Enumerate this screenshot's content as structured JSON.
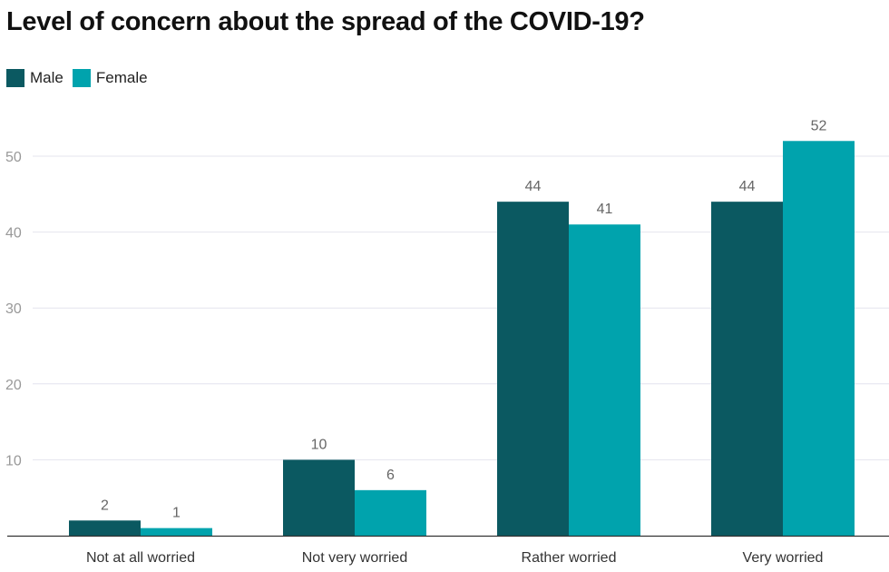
{
  "title": "Level of concern about the spread of the COVID-19?",
  "colors": {
    "male": "#0b5961",
    "female": "#00a3ad",
    "grid": "#e4e4ee",
    "axis": "#333333",
    "tick_text": "#999999",
    "label_text": "#666666"
  },
  "legend": [
    {
      "name": "Male",
      "color": "#0b5961"
    },
    {
      "name": "Female",
      "color": "#00a3ad"
    }
  ],
  "chart_data": {
    "type": "bar",
    "categories": [
      "Not at all worried",
      "Not very worried",
      "Rather worried",
      "Very worried"
    ],
    "series": [
      {
        "name": "Male",
        "values": [
          2,
          10,
          44,
          44
        ],
        "color": "#0b5961"
      },
      {
        "name": "Female",
        "values": [
          1,
          6,
          41,
          52
        ],
        "color": "#00a3ad"
      }
    ],
    "yticks": [
      10,
      20,
      30,
      40,
      50
    ],
    "ylim": [
      0,
      55
    ],
    "grid": true,
    "data_labels": true,
    "legend_position": "top-left",
    "xlabel": "",
    "ylabel": ""
  }
}
